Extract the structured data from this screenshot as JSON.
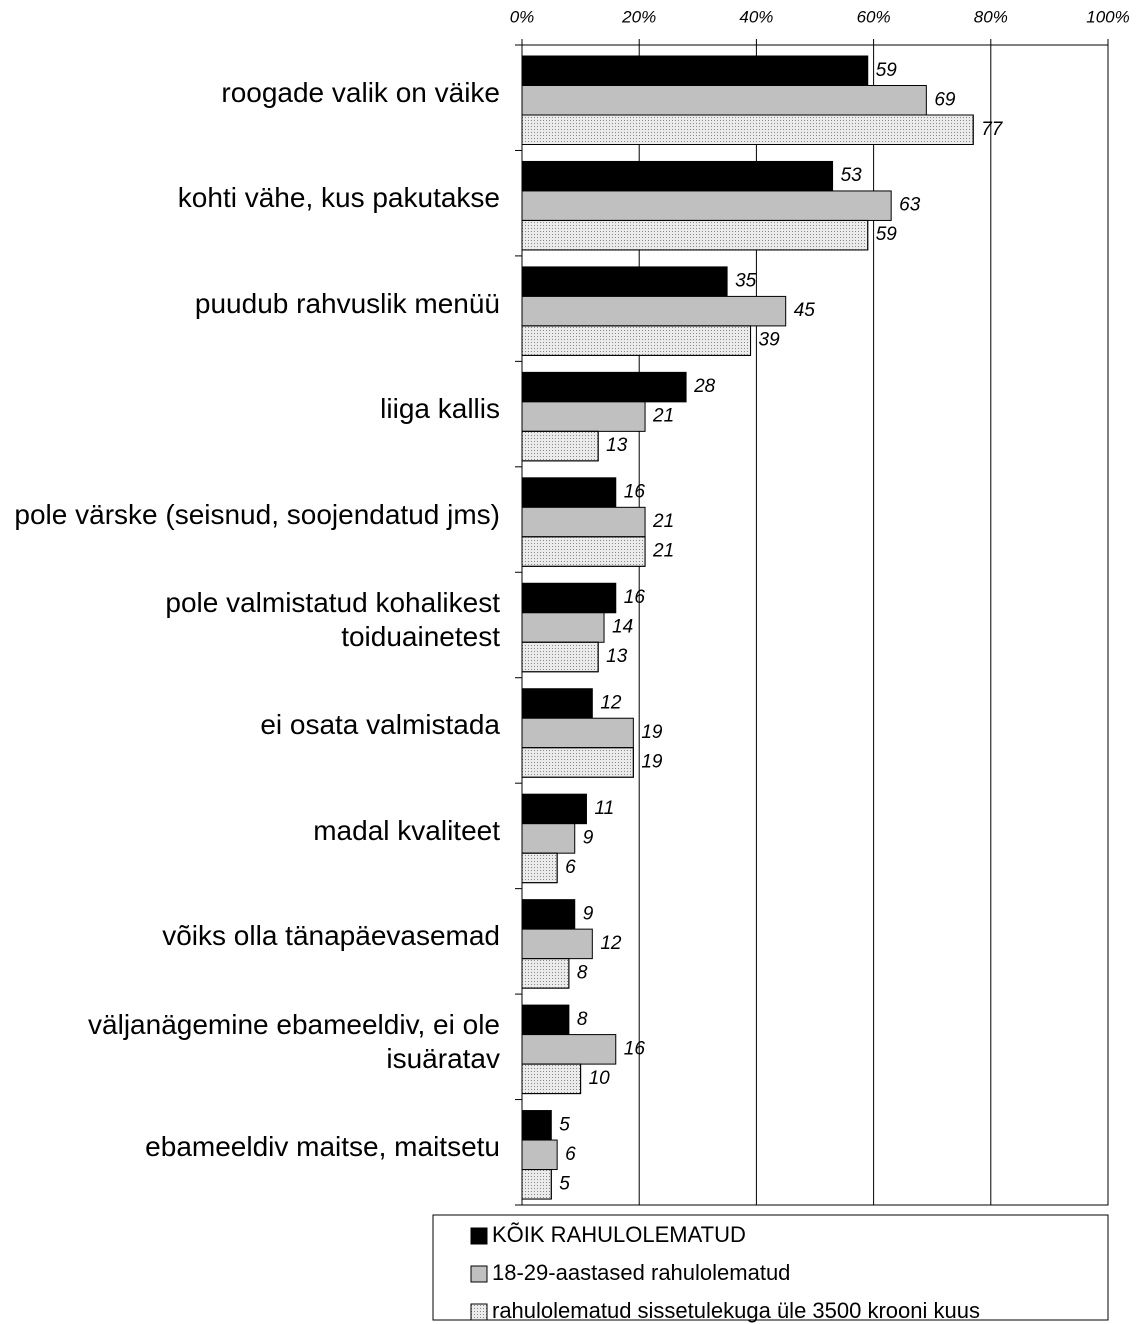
{
  "chart_data": {
    "type": "bar",
    "orientation": "horizontal",
    "categories": [
      "roogade valik on väike",
      "kohti vähe, kus pakutakse",
      "puudub rahvuslik menüü",
      "liiga kallis",
      "pole värske (seisnud, soojendatud jms)",
      "pole valmistatud kohalikest toiduainetest",
      "ei osata valmistada",
      "madal kvaliteet",
      "võiks olla tänapäevasemad",
      "väljanägemine ebameeldiv, ei ole isuäratav",
      "ebameeldiv maitse, maitsetu"
    ],
    "series": [
      {
        "name": "KÕIK RAHULOLEMATUD",
        "color": "#000000",
        "values": [
          59,
          53,
          35,
          28,
          16,
          16,
          12,
          11,
          9,
          8,
          5
        ]
      },
      {
        "name": "18-29-aastased rahulolematud",
        "color": "#c0c0c0",
        "values": [
          69,
          63,
          45,
          21,
          21,
          14,
          19,
          9,
          12,
          16,
          6
        ]
      },
      {
        "name": "rahulolematud sissetulekuga üle 3500 krooni kuus",
        "color": "#ebebeb",
        "values": [
          77,
          59,
          39,
          13,
          21,
          13,
          19,
          6,
          8,
          10,
          5
        ]
      }
    ],
    "xlim": [
      0,
      100
    ],
    "xticks": [
      {
        "value": 0,
        "label": "0%"
      },
      {
        "value": 20,
        "label": "20%"
      },
      {
        "value": 40,
        "label": "40%"
      },
      {
        "value": 60,
        "label": "60%"
      },
      {
        "value": 80,
        "label": "80%"
      },
      {
        "value": 100,
        "label": "100%"
      }
    ],
    "grid": true,
    "legend": "bottom"
  }
}
